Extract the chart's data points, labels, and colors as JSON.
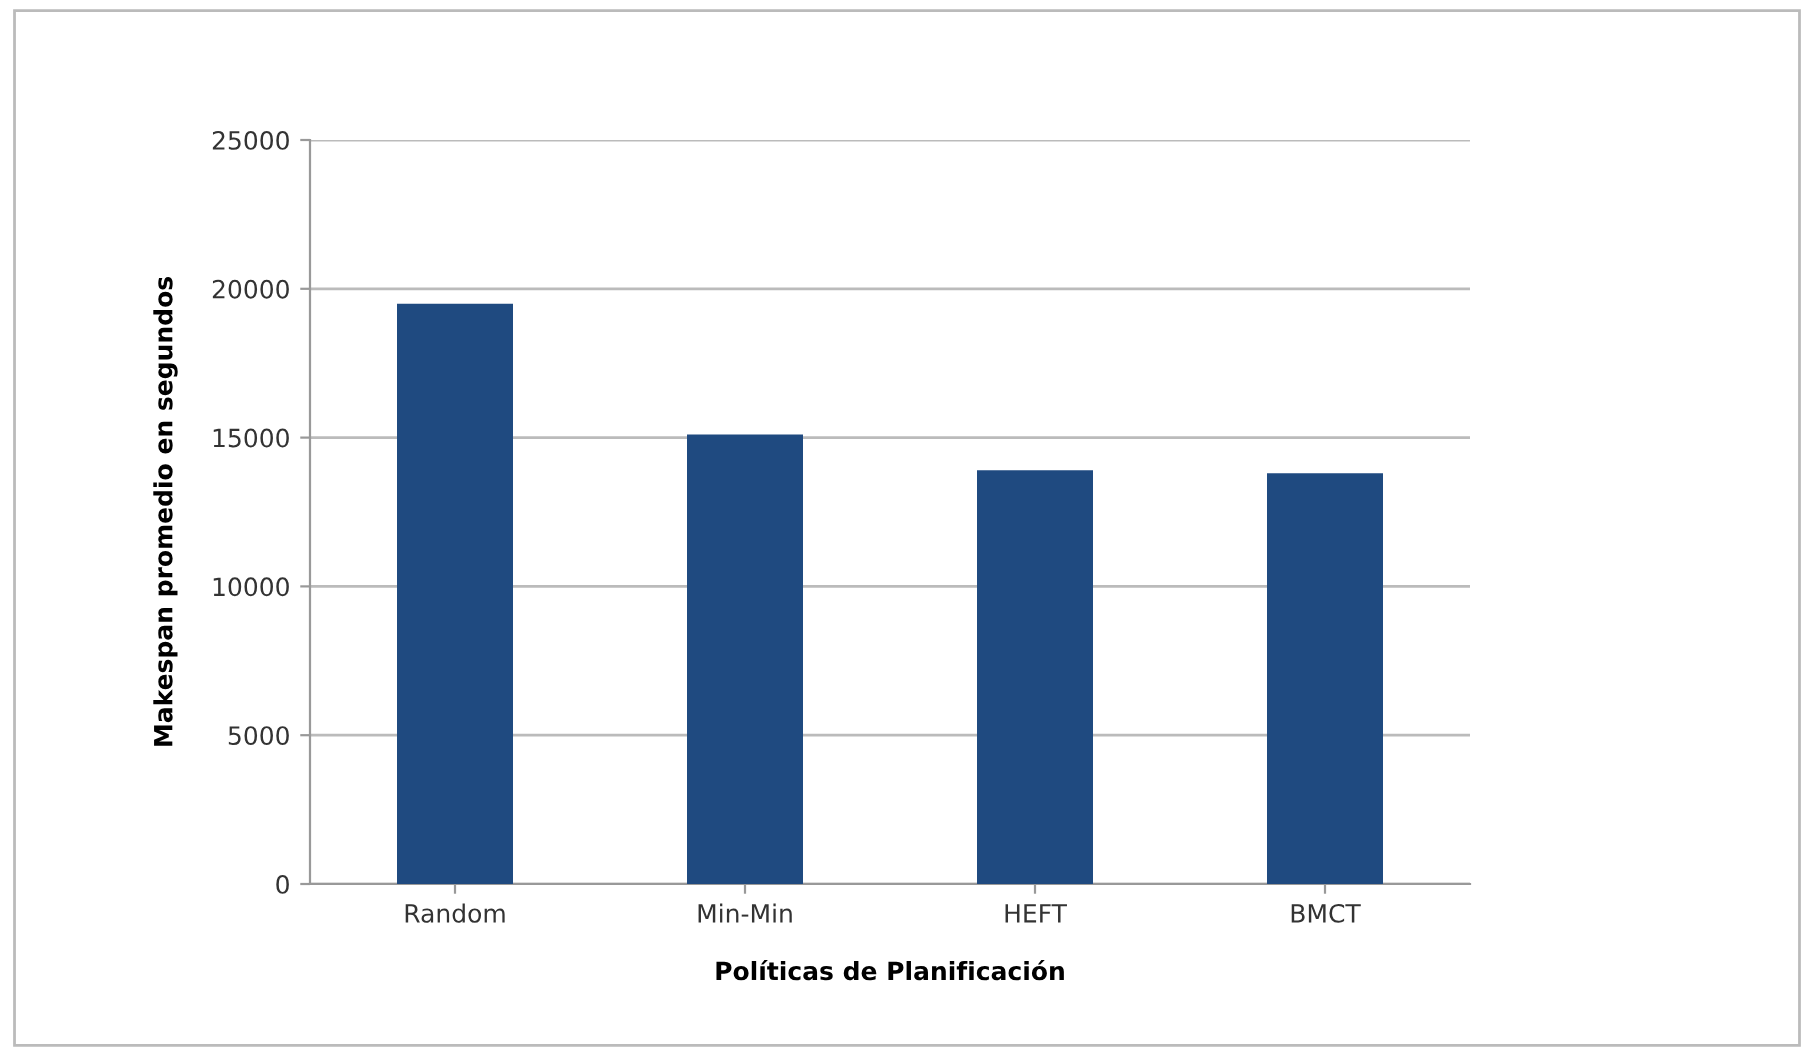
{
  "chart_data": {
    "type": "bar",
    "xlabel": "Políticas de Planificación",
    "ylabel": "Makespan promedio en segundos",
    "categories": [
      "Random",
      "Min-Min",
      "HEFT",
      "BMCT"
    ],
    "values": [
      19500,
      15100,
      13900,
      13800
    ],
    "color": "#1f4a80",
    "ylim": [
      0,
      25000
    ],
    "yticks": [
      0,
      5000,
      10000,
      15000,
      20000,
      25000
    ],
    "grid": "y",
    "legend": false
  }
}
